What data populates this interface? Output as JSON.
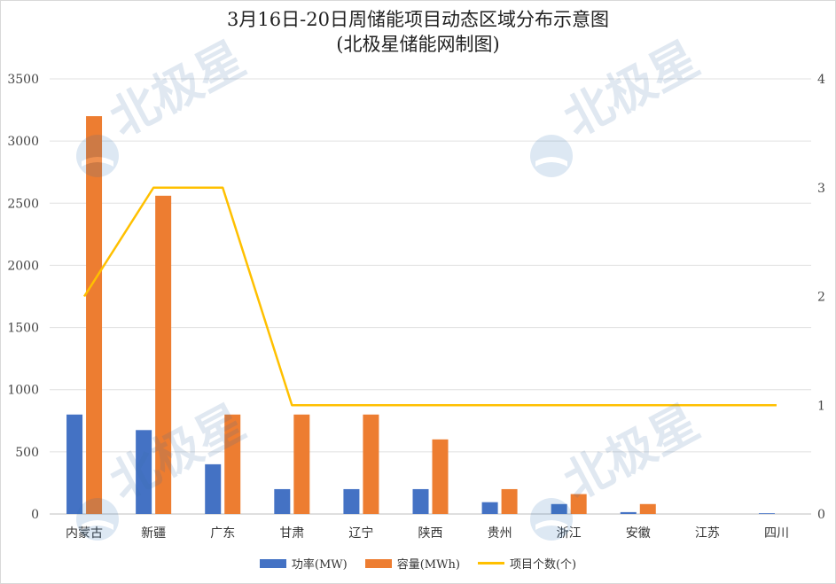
{
  "title": {
    "line1": "3月16日-20日周储能项目动态区域分布示意图",
    "line2": "(北极星储能网制图)"
  },
  "watermark": {
    "text": "北极星"
  },
  "colors": {
    "power": "#4472c4",
    "capacity": "#ed7d31",
    "count": "#ffc000",
    "grid": "#e0e0e0"
  },
  "chart_data": {
    "type": "bar",
    "categories": [
      "内蒙古",
      "新疆",
      "广东",
      "甘肃",
      "辽宁",
      "陕西",
      "贵州",
      "浙江",
      "安徽",
      "江苏",
      "四川"
    ],
    "series": [
      {
        "name": "功率(MW)",
        "type": "bar",
        "axis": "left",
        "color": "#4472c4",
        "values": [
          800,
          675,
          400,
          200,
          200,
          200,
          95,
          80,
          15,
          0,
          6
        ]
      },
      {
        "name": "容量(MWh)",
        "type": "bar",
        "axis": "left",
        "color": "#ed7d31",
        "values": [
          3200,
          2560,
          800,
          800,
          800,
          600,
          200,
          160,
          80,
          0,
          0
        ]
      },
      {
        "name": "项目个数(个)",
        "type": "line",
        "axis": "right",
        "color": "#ffc000",
        "values": [
          2,
          3,
          3,
          1,
          1,
          1,
          1,
          1,
          1,
          1,
          1
        ]
      }
    ],
    "y_left": {
      "range": [
        0,
        3500
      ],
      "ticks": [
        "0",
        "500",
        "1000",
        "1500",
        "2000",
        "2500",
        "3000",
        "3500"
      ]
    },
    "y_right": {
      "range": [
        0,
        4
      ],
      "ticks": [
        "0",
        "1",
        "2",
        "3",
        "4"
      ]
    },
    "grid": true,
    "legend_position": "bottom"
  }
}
